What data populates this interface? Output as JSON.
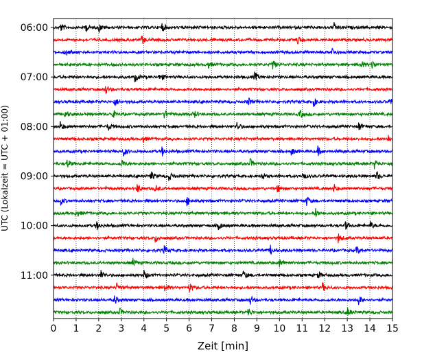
{
  "chart_data": {
    "type": "line",
    "title": "",
    "xlabel": "Zeit  [min]",
    "ylabel": "UTC (Lokalzeit = UTC + 01:00)",
    "xlim": [
      0,
      15
    ],
    "ylim": [
      "05:45",
      "12:00"
    ],
    "x_ticks": [
      "0",
      "1",
      "2",
      "3",
      "4",
      "5",
      "6",
      "7",
      "8",
      "9",
      "10",
      "11",
      "12",
      "13",
      "14",
      "15"
    ],
    "y_ticks": [
      "06:00",
      "07:00",
      "08:00",
      "09:00",
      "10:00",
      "11:00"
    ],
    "grid": "vertical dotted lines at each minute",
    "trace_interval_minutes": 15,
    "color_cycle": [
      "#000000",
      "#ff0000",
      "#0000ff",
      "#008000"
    ],
    "traces": [
      {
        "start": "06:00",
        "events_min": [
          0.3,
          1.4,
          2.0,
          4.8,
          12.4
        ]
      },
      {
        "start": "06:15",
        "events_min": [
          3.9,
          10.8
        ]
      },
      {
        "start": "06:30",
        "events_min": [
          0.5,
          12.3
        ]
      },
      {
        "start": "06:45",
        "events_min": [
          6.8,
          9.7,
          13.6,
          14.1
        ]
      },
      {
        "start": "07:00",
        "events_min": [
          3.6,
          4.7,
          8.9
        ]
      },
      {
        "start": "07:15",
        "events_min": [
          2.3
        ]
      },
      {
        "start": "07:30",
        "events_min": [
          2.7,
          8.6,
          11.5,
          14.9
        ]
      },
      {
        "start": "07:45",
        "events_min": [
          0.5,
          2.6,
          4.9,
          6.2,
          10.9
        ]
      },
      {
        "start": "08:00",
        "events_min": [
          0.3,
          2.4,
          8.1,
          13.5
        ]
      },
      {
        "start": "08:15",
        "events_min": [
          3.9,
          14.8
        ]
      },
      {
        "start": "08:30",
        "events_min": [
          3.1,
          4.8,
          10.5,
          11.7
        ]
      },
      {
        "start": "08:45",
        "events_min": [
          0.6,
          3.0,
          8.7,
          14.2
        ]
      },
      {
        "start": "09:00",
        "events_min": [
          4.3,
          5.1,
          9.2,
          11.0,
          14.3
        ]
      },
      {
        "start": "09:15",
        "events_min": [
          3.7,
          4.5,
          9.9,
          12.4
        ]
      },
      {
        "start": "09:30",
        "events_min": [
          0.3,
          5.9,
          11.2
        ]
      },
      {
        "start": "09:45",
        "events_min": [
          1.0,
          11.6
        ]
      },
      {
        "start": "10:00",
        "events_min": [
          1.9,
          7.3,
          12.9,
          14.0
        ]
      },
      {
        "start": "10:15",
        "events_min": [
          4.5,
          12.6
        ]
      },
      {
        "start": "10:30",
        "events_min": [
          4.9,
          9.6,
          13.4
        ]
      },
      {
        "start": "10:45",
        "events_min": [
          3.5,
          10.0,
          15.0
        ]
      },
      {
        "start": "11:00",
        "events_min": [
          2.1,
          4.0,
          8.4,
          11.7
        ]
      },
      {
        "start": "11:15",
        "events_min": [
          2.8,
          4.9,
          6.0,
          11.9
        ]
      },
      {
        "start": "11:30",
        "events_min": [
          2.7,
          8.7,
          13.5
        ]
      },
      {
        "start": "11:45",
        "events_min": [
          2.9,
          8.6,
          13.0
        ]
      }
    ]
  }
}
